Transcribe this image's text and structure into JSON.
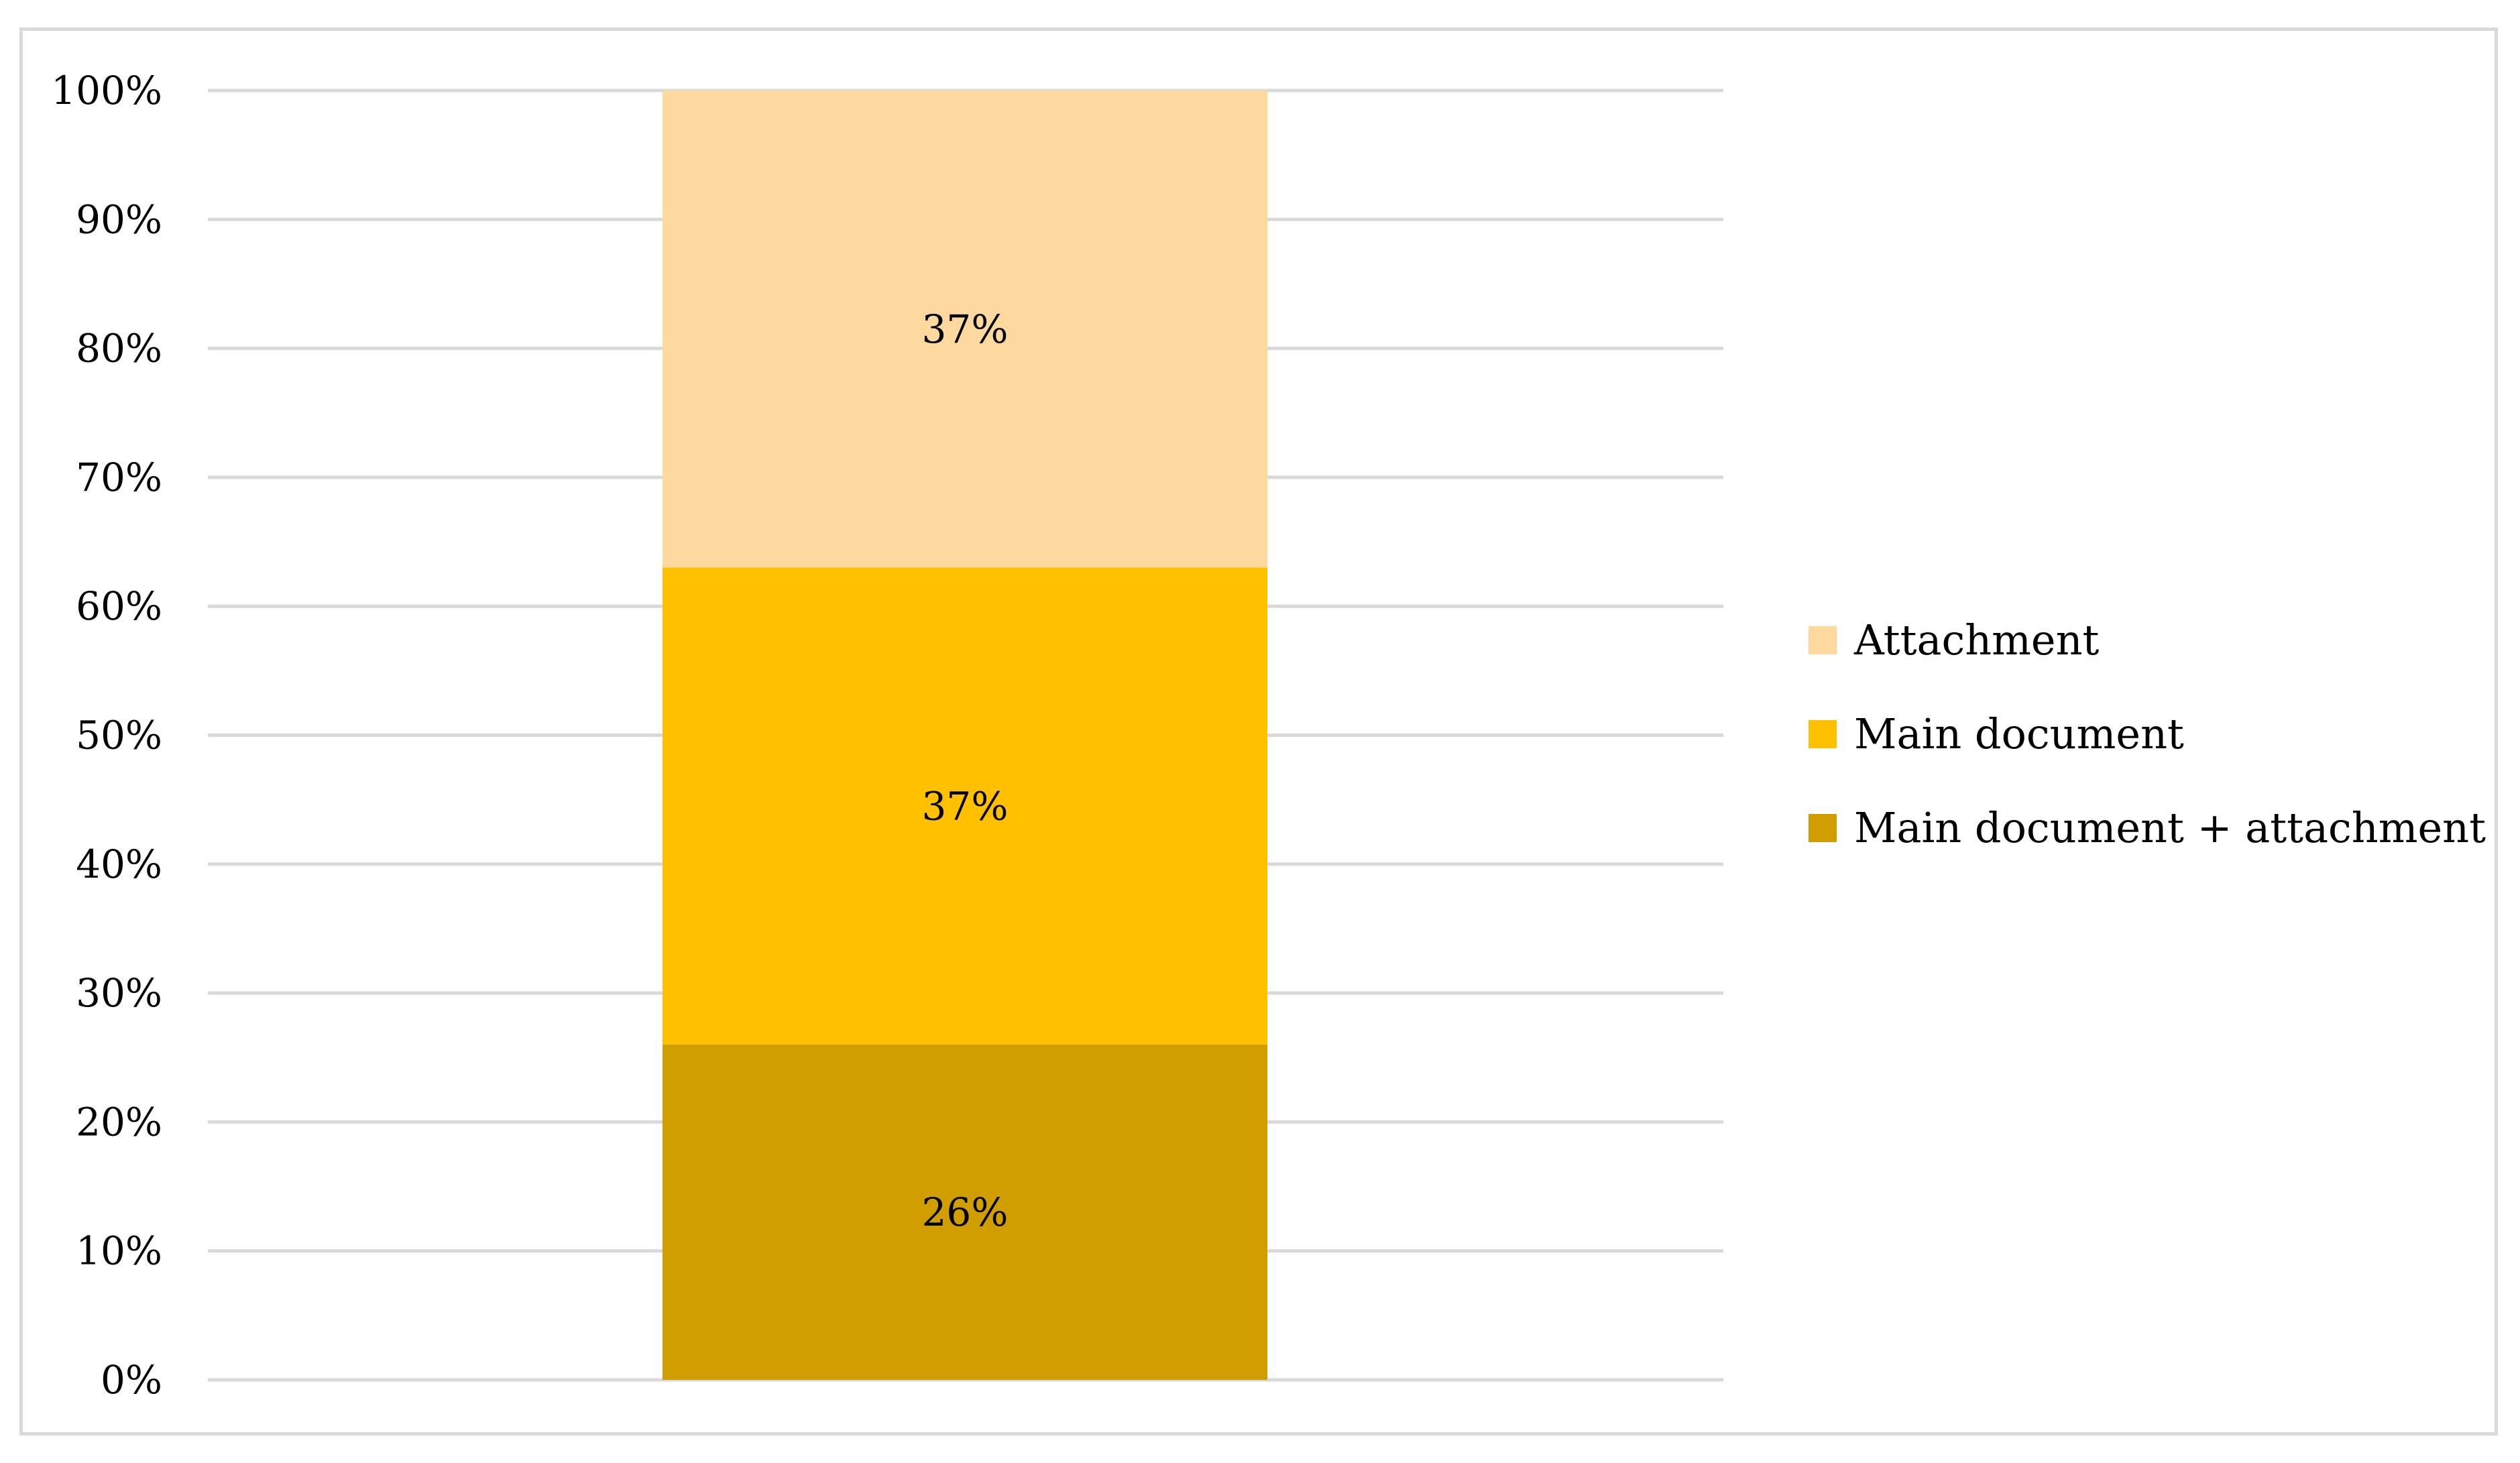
{
  "chart_data": {
    "type": "bar",
    "stacked": true,
    "categories": [
      ""
    ],
    "series": [
      {
        "name": "Main document + attachment",
        "values": [
          26
        ],
        "color": "#d19e00"
      },
      {
        "name": "Main document",
        "values": [
          37
        ],
        "color": "#ffc000"
      },
      {
        "name": "Attachment",
        "values": [
          37
        ],
        "color": "#fdd99f"
      }
    ],
    "data_labels": [
      "26%",
      "37%",
      "37%"
    ],
    "y_ticks": [
      "0%",
      "10%",
      "20%",
      "30%",
      "40%",
      "50%",
      "60%",
      "70%",
      "80%",
      "90%",
      "100%"
    ],
    "ylim": [
      0,
      100
    ],
    "grid": true,
    "legend": {
      "placement": "right",
      "entries": [
        {
          "label": "Attachment",
          "color": "#fdd99f"
        },
        {
          "label": "Main document",
          "color": "#ffc000"
        },
        {
          "label": "Main document + attachment",
          "color": "#d19e00"
        }
      ]
    },
    "gridline_color": "#d9d9d9"
  }
}
